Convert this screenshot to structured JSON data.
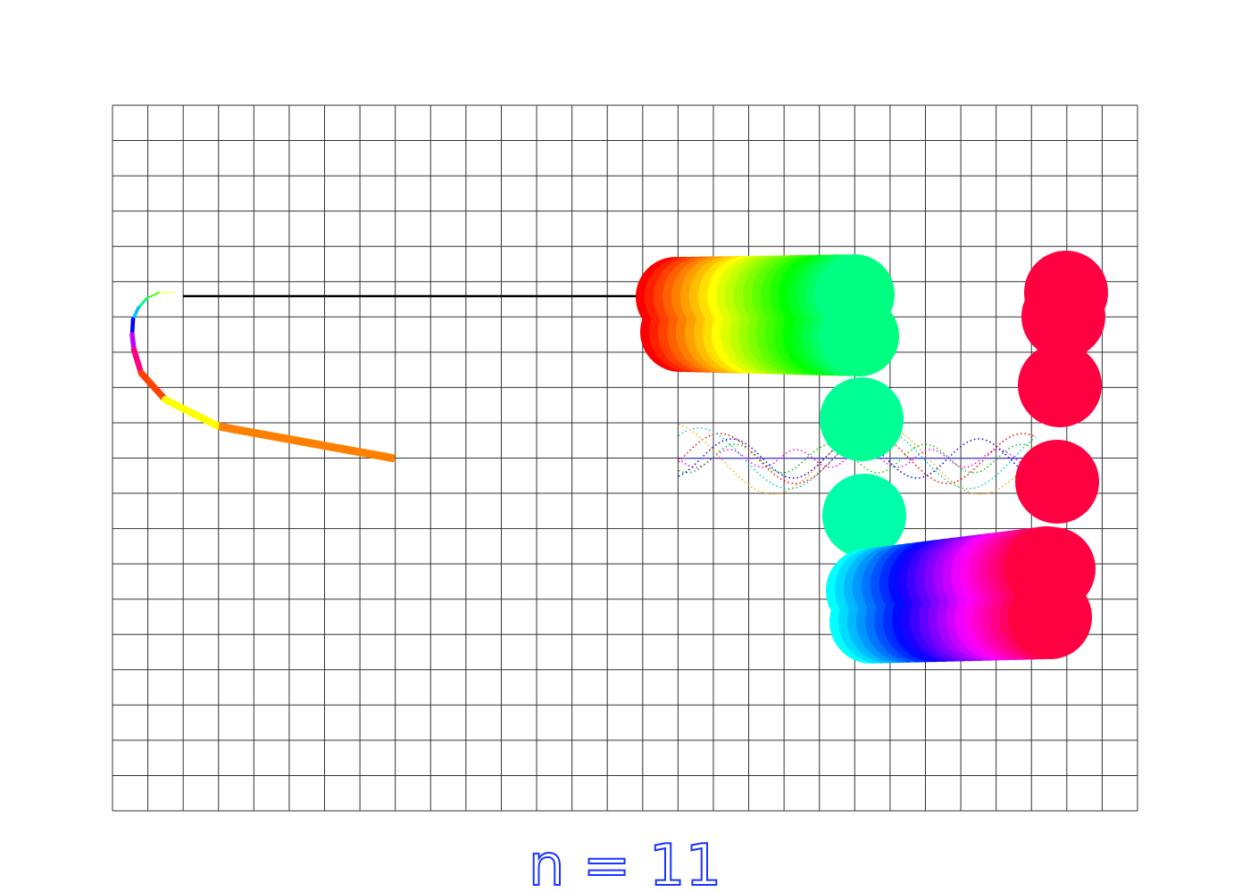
{
  "caption": "n = 11"
}
